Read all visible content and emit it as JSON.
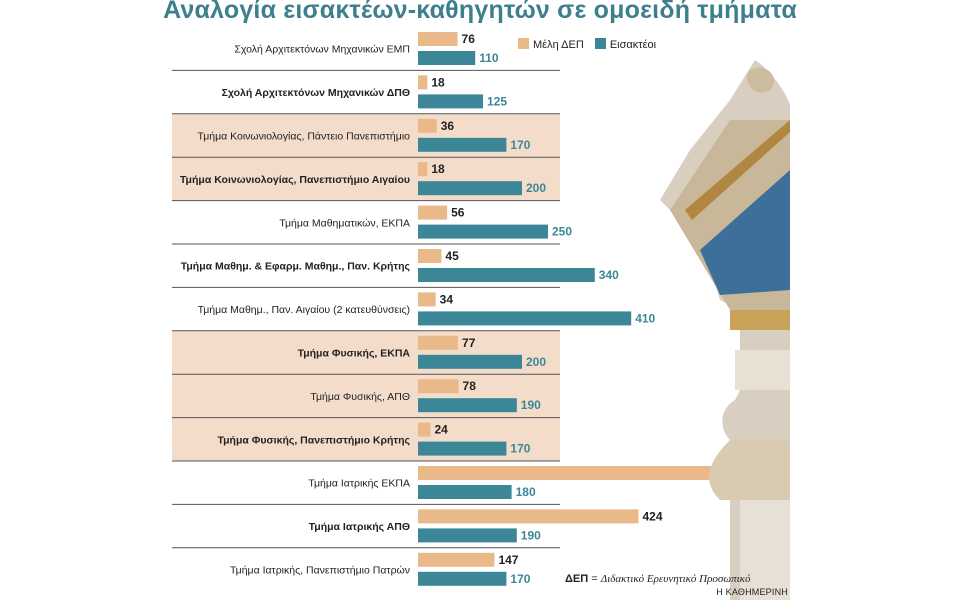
{
  "title": "Αναλογία εισακτέων-καθηγητών σε ομοειδή τμήματα",
  "colors": {
    "dep": "#e9b98a",
    "eisakteoi": "#3c8797",
    "band": "#f4dccb",
    "title": "#3e7f8e"
  },
  "footnote": {
    "abbr": "ΔΕΠ",
    "text": "Διδακτικό Ερευνητικό Προσωπικό"
  },
  "credit": "Η ΚΑΘΗΜΕΡΙΝΗ",
  "chart_data": {
    "type": "bar",
    "orientation": "horizontal",
    "legend_position": "top-right",
    "categories": [
      "Σχολή Αρχιτεκτόνων Μηχανικών ΕΜΠ",
      "Σχολή Αρχιτεκτόνων Μηχανικών ΔΠΘ",
      "Τμήμα Κοινωνιολογίας, Πάντειο Πανεπιστήμιο",
      "Τμήμα Κοινωνιολογίας, Πανεπιστήμιο Αιγαίου",
      "Τμήμα Μαθηματικών, ΕΚΠΑ",
      "Τμήμα Μαθημ. & Εφαρμ. Μαθημ., Παν. Κρήτης",
      "Τμήμα Μαθημ., Παν. Αιγαίου (2 κατευθύνσεις)",
      "Τμήμα Φυσικής, ΕΚΠΑ",
      "Τμήμα Φυσικής, ΑΠΘ",
      "Τμήμα Φυσικής, Πανεπιστήμιο Κρήτης",
      "Τμήμα Ιατρικής ΕΚΠΑ",
      "Τμήμα Ιατρικής ΑΠΘ",
      "Τμήμα Ιατρικής, Πανεπιστήμιο Πατρών"
    ],
    "bold_categories": [
      false,
      true,
      false,
      true,
      false,
      true,
      false,
      true,
      false,
      true,
      false,
      true,
      false
    ],
    "shaded_groups": [
      2,
      3,
      7,
      8,
      9
    ],
    "series": [
      {
        "name": "Μέλη ΔΕΠ",
        "values": [
          76,
          18,
          36,
          18,
          56,
          45,
          34,
          77,
          78,
          24,
          629,
          424,
          147
        ]
      },
      {
        "name": "Εισακτέοι",
        "values": [
          110,
          125,
          170,
          200,
          250,
          340,
          410,
          200,
          190,
          170,
          180,
          190,
          170
        ]
      }
    ]
  }
}
